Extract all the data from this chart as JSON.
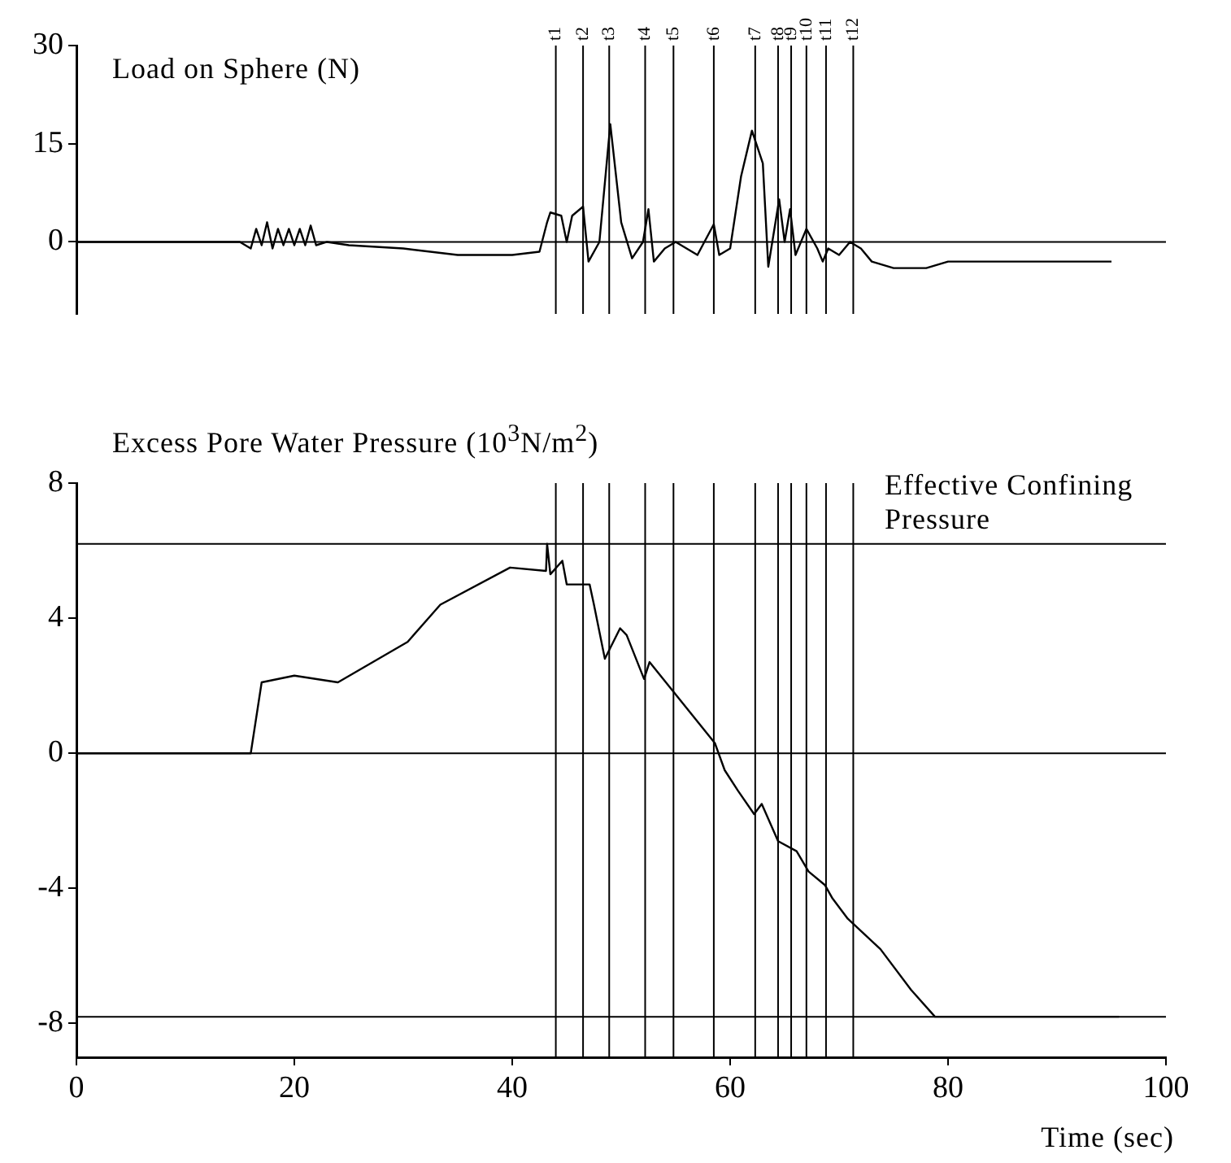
{
  "chart_data": [
    {
      "type": "line",
      "title": "Load on Sphere (N)",
      "xlim": [
        0,
        100
      ],
      "ylim": [
        -11,
        30
      ],
      "yticks": [
        0,
        15,
        30
      ],
      "tick_labels": "y",
      "grid": false,
      "series": [
        {
          "color": "#000000",
          "x": [
            0,
            15,
            16,
            16.5,
            17,
            17.5,
            18,
            18.5,
            19,
            19.5,
            20,
            20.5,
            21,
            21.5,
            22,
            23,
            25,
            30,
            35,
            40,
            42.5,
            43.2,
            43.5,
            44.5,
            45,
            45.5,
            46.5,
            47,
            48,
            49,
            50,
            51,
            52,
            52.5,
            53,
            54,
            55,
            56,
            57,
            58.5,
            59,
            60,
            61,
            62,
            63,
            63.5,
            64.5,
            65,
            65.5,
            66,
            67,
            68,
            68.5,
            69,
            70,
            71,
            72,
            73,
            75,
            78,
            80,
            85,
            95
          ],
          "values": [
            0,
            0,
            -1,
            2,
            -0.5,
            3,
            -1,
            2,
            -0.5,
            2,
            -0.5,
            2,
            -0.5,
            2.5,
            -0.5,
            0,
            -0.5,
            -1,
            -2,
            -2,
            -1.5,
            3,
            4.5,
            4,
            0,
            4,
            5.4,
            -3,
            0,
            18,
            3,
            -2.5,
            0,
            5,
            -3,
            -1,
            0,
            -1,
            -2,
            2.7,
            -2,
            -1,
            10,
            17,
            12,
            -3.8,
            6.5,
            0,
            5,
            -2,
            2,
            -1,
            -3,
            -1,
            -2,
            0,
            -1,
            -3,
            -4,
            -4,
            -3,
            -3,
            -3
          ]
        }
      ],
      "ref_lines": [
        {
          "axis": "y",
          "value": 0
        },
        {
          "axis": "x",
          "value": 44,
          "label": "t1"
        },
        {
          "axis": "x",
          "value": 46.5,
          "label": "t2"
        },
        {
          "axis": "x",
          "value": 48.9,
          "label": "t3"
        },
        {
          "axis": "x",
          "value": 52.2,
          "label": "t4"
        },
        {
          "axis": "x",
          "value": 54.8,
          "label": "t5"
        },
        {
          "axis": "x",
          "value": 58.5,
          "label": "t6"
        },
        {
          "axis": "x",
          "value": 62.3,
          "label": "t7"
        },
        {
          "axis": "x",
          "value": 64.4,
          "label": "t8"
        },
        {
          "axis": "x",
          "value": 65.6,
          "label": "t9"
        },
        {
          "axis": "x",
          "value": 67,
          "label": "t10"
        },
        {
          "axis": "x",
          "value": 68.8,
          "label": "t11"
        },
        {
          "axis": "x",
          "value": 71.3,
          "label": "t12"
        }
      ]
    },
    {
      "type": "line",
      "title": "Excess Pore Water Pressure (10$^{3}$N/m$^{2}$)",
      "xlabel": "Time (sec)",
      "xlim": [
        0,
        100
      ],
      "xticks": [
        0,
        20,
        40,
        60,
        80,
        100
      ],
      "ylim": [
        -9,
        8
      ],
      "yticks": [
        -8,
        -4,
        0,
        4,
        8
      ],
      "grid": false,
      "series": [
        {
          "color": "#000000",
          "x": [
            0,
            16,
            17,
            20,
            24,
            30.4,
            33.4,
            39.8,
            43.1,
            43.2,
            43.5,
            44.6,
            45,
            47.1,
            47.5,
            48.5,
            49.9,
            50.5,
            52.1,
            52.6,
            58.6,
            59.5,
            60.7,
            62.2,
            62.9,
            64.4,
            66.1,
            67.2,
            68.7,
            69.4,
            70.8,
            73.8,
            76.6,
            78.8,
            95.7
          ],
          "values": [
            0,
            0,
            2.1,
            2.3,
            2.1,
            3.3,
            4.4,
            5.5,
            5.4,
            6.2,
            5.3,
            5.7,
            5,
            5,
            4.4,
            2.8,
            3.7,
            3.5,
            2.2,
            2.7,
            0.3,
            -0.5,
            -1.1,
            -1.8,
            -1.5,
            -2.6,
            -2.9,
            -3.5,
            -3.9,
            -4.3,
            -4.9,
            -5.8,
            -7,
            -7.8,
            -7.8
          ]
        }
      ],
      "ref_lines": [
        {
          "axis": "y",
          "value": 6.2,
          "label": "Effective Confining Pressure"
        },
        {
          "axis": "y",
          "value": 0
        },
        {
          "axis": "y",
          "value": -7.8
        },
        {
          "axis": "x",
          "value": 44
        },
        {
          "axis": "x",
          "value": 46.5
        },
        {
          "axis": "x",
          "value": 48.9
        },
        {
          "axis": "x",
          "value": 52.2
        },
        {
          "axis": "x",
          "value": 54.8
        },
        {
          "axis": "x",
          "value": 58.5
        },
        {
          "axis": "x",
          "value": 62.3
        },
        {
          "axis": "x",
          "value": 64.4
        },
        {
          "axis": "x",
          "value": 65.6
        },
        {
          "axis": "x",
          "value": 67
        },
        {
          "axis": "x",
          "value": 68.8
        },
        {
          "axis": "x",
          "value": 71.3
        }
      ]
    }
  ]
}
